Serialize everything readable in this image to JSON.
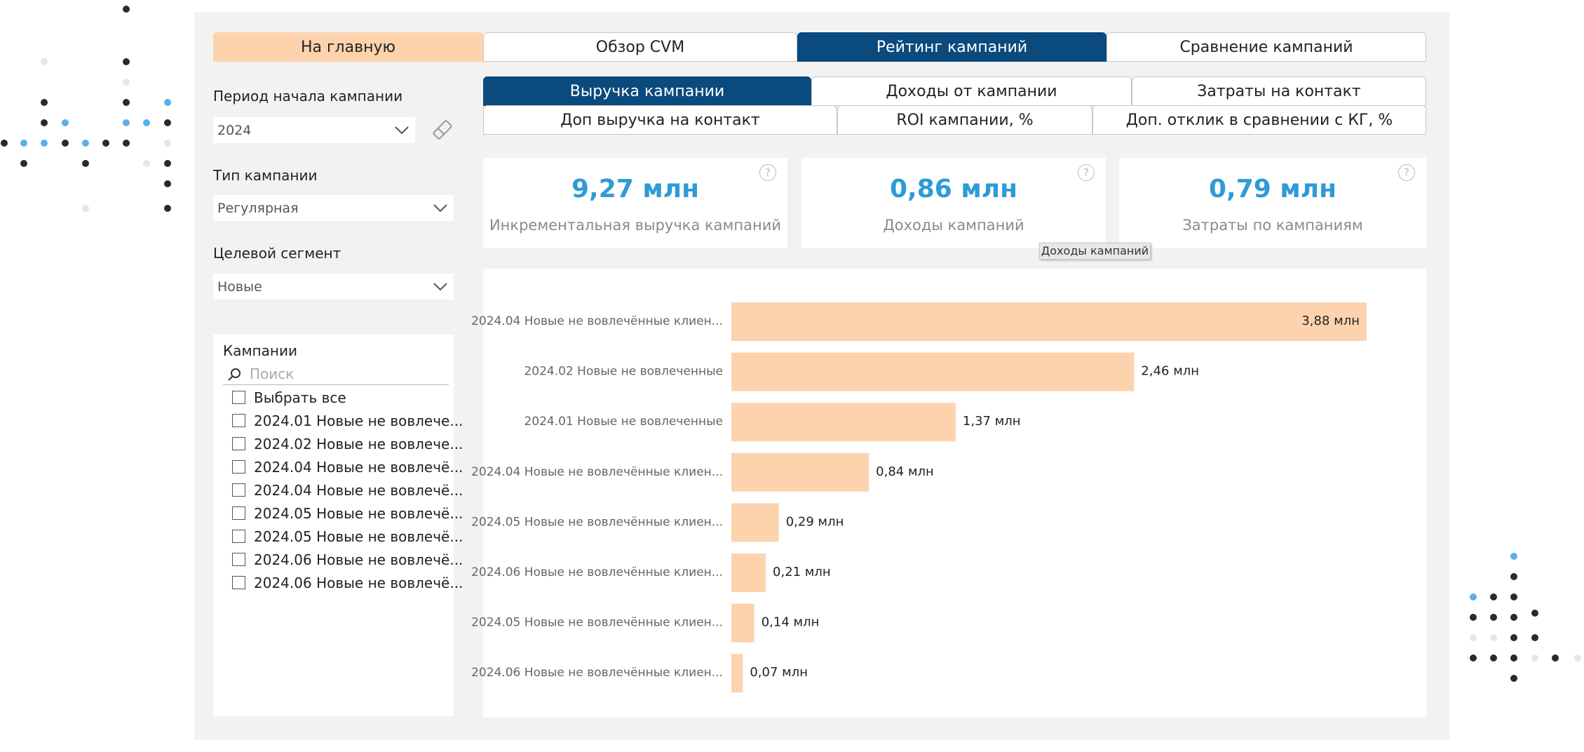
{
  "nav_tabs": [
    "На главную",
    "Обзор CVM",
    "Рейтинг кампаний",
    "Сравнение кампаний"
  ],
  "metric_tabs": [
    "Выручка кампании",
    "Доходы от кампании",
    "Затраты на контакт",
    "Доп выручка на контакт",
    "ROI кампании, %",
    "Доп. отклик в сравнении с КГ, %"
  ],
  "filters": [
    {
      "label": "Период начала кампании",
      "value": "2024"
    },
    {
      "label": "Тип кампании",
      "value": "Регулярная"
    },
    {
      "label": "Целевой сегмент",
      "value": "Новые"
    }
  ],
  "campaigns": {
    "title": "Кампании",
    "search_placeholder": "Поиск",
    "items": [
      "Выбрать все",
      "2024.01 Новые не вовлече...",
      "2024.02 Новые не вовлече...",
      "2024.04 Новые не вовлечё...",
      "2024.04 Новые не вовлечё...",
      "2024.05 Новые не вовлечё...",
      "2024.05 Новые не вовлечё...",
      "2024.06 Новые не вовлечё...",
      "2024.06 Новые не вовлечё..."
    ]
  },
  "kpis": [
    {
      "value": "9,27 млн",
      "label": "Инкрементальная выручка кампаний"
    },
    {
      "value": "0,86 млн",
      "label": "Доходы кампаний"
    },
    {
      "value": "0,79 млн",
      "label": "Затраты по кампаниям"
    }
  ],
  "tooltip": "Доходы кампаний",
  "chart_data": {
    "type": "bar",
    "orientation": "horizontal",
    "color": "#fdd3ae",
    "categories": [
      "2024.04 Новые не вовлечённые клиен...",
      "2024.02 Новые не вовлеченные",
      "2024.01 Новые не вовлеченные",
      "2024.04 Новые не вовлечённые клиен...",
      "2024.05 Новые не вовлечённые клиен...",
      "2024.06 Новые не вовлечённые клиен...",
      "2024.05 Новые не вовлечённые клиен...",
      "2024.06 Новые не вовлечённые клиен..."
    ],
    "values": [
      3.88,
      2.46,
      1.37,
      0.84,
      0.29,
      0.21,
      0.14,
      0.07
    ],
    "value_labels": [
      "3,88 млн",
      "2,46 млн",
      "1,37 млн",
      "0,84 млн",
      "0,29 млн",
      "0,21 млн",
      "0,14 млн",
      "0,07 млн"
    ]
  }
}
